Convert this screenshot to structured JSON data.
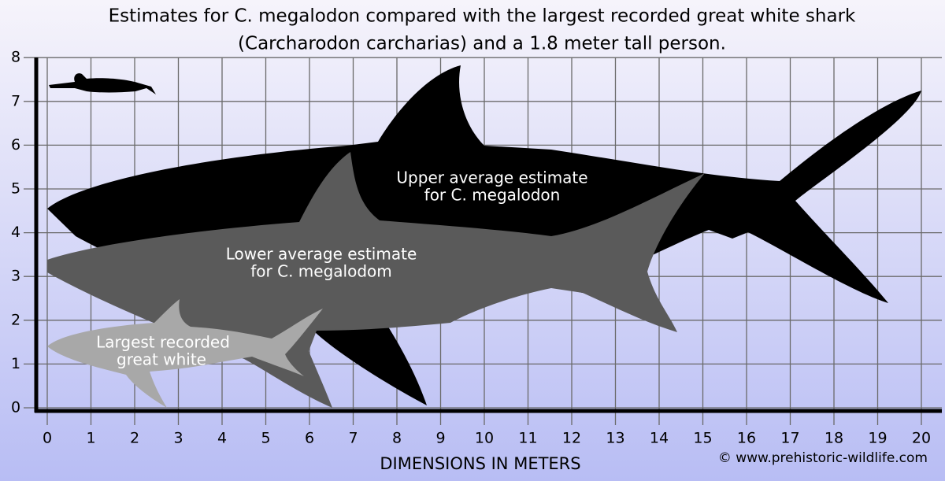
{
  "title": [
    "Estimates for C. megalodon compared with the largest recorded great white shark",
    "(Carcharodon carcharias) and a 1.8 meter tall person."
  ],
  "y_axis": {
    "ticks": [
      0,
      1,
      2,
      3,
      4,
      5,
      6,
      7,
      8
    ]
  },
  "x_axis": {
    "label": "DIMENSIONS IN METERS",
    "ticks": [
      0,
      1,
      2,
      3,
      4,
      5,
      6,
      7,
      8,
      9,
      10,
      11,
      12,
      13,
      14,
      15,
      16,
      17,
      18,
      19,
      20
    ]
  },
  "labels": {
    "upper": [
      "Upper average estimate",
      "for C. megalodon"
    ],
    "lower": [
      "Lower average estimate",
      "for C. megalodom"
    ],
    "great_white": [
      "Largest recorded",
      "great white"
    ]
  },
  "credit": "© www.prehistoric-wildlife.com"
}
